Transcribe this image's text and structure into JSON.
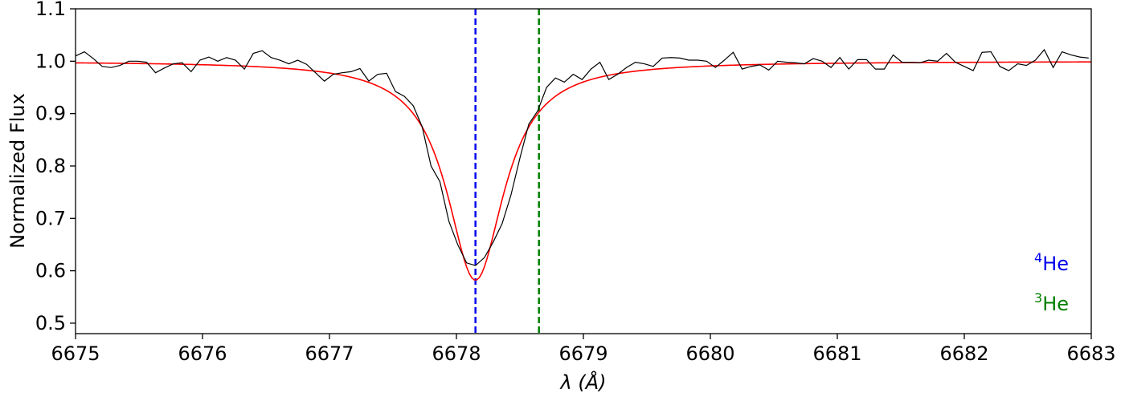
{
  "chart_data": {
    "type": "line",
    "xlabel": "λ (Å)",
    "ylabel": "Normalized Flux",
    "xlim": [
      6675,
      6683
    ],
    "ylim": [
      0.48,
      1.1
    ],
    "x_ticks": [
      6675,
      6676,
      6677,
      6678,
      6679,
      6680,
      6681,
      6682,
      6683
    ],
    "x_tick_labels": [
      "6675",
      "6676",
      "6677",
      "6678",
      "6679",
      "6680",
      "6681",
      "6682",
      "6683"
    ],
    "y_ticks": [
      0.5,
      0.6,
      0.7,
      0.8,
      0.9,
      1.0,
      1.1
    ],
    "y_tick_labels": [
      "0.5",
      "0.6",
      "0.7",
      "0.8",
      "0.9",
      "1.0",
      "1.1"
    ],
    "grid": false,
    "series": [
      {
        "role": "observed",
        "color": "#000000",
        "x": [
          6675.0,
          6675.07,
          6675.14,
          6675.21,
          6675.28,
          6675.35,
          6675.42,
          6675.49,
          6675.56,
          6675.63,
          6675.7,
          6675.77,
          6675.84,
          6675.91,
          6675.98,
          6676.05,
          6676.12,
          6676.19,
          6676.26,
          6676.33,
          6676.4,
          6676.47,
          6676.54,
          6676.61,
          6676.68,
          6676.75,
          6676.82,
          6676.89,
          6676.96,
          6677.03,
          6677.1,
          6677.17,
          6677.24,
          6677.31,
          6677.38,
          6677.45,
          6677.52,
          6677.59,
          6677.66,
          6677.73,
          6677.8,
          6677.87,
          6677.94,
          6678.01,
          6678.08,
          6678.15,
          6678.22,
          6678.29,
          6678.36,
          6678.43,
          6678.5,
          6678.57,
          6678.64,
          6678.71,
          6678.78,
          6678.85,
          6678.92,
          6678.99,
          6679.06,
          6679.13,
          6679.2,
          6679.27,
          6679.34,
          6679.41,
          6679.48,
          6679.55,
          6679.62,
          6679.69,
          6679.76,
          6679.83,
          6679.9,
          6679.97,
          6680.04,
          6680.11,
          6680.18,
          6680.25,
          6680.32,
          6680.39,
          6680.46,
          6680.53,
          6680.6,
          6680.67,
          6680.74,
          6680.81,
          6680.88,
          6680.95,
          6681.02,
          6681.09,
          6681.16,
          6681.23,
          6681.3,
          6681.37,
          6681.44,
          6681.51,
          6681.58,
          6681.65,
          6681.72,
          6681.79,
          6681.86,
          6681.93,
          6682.0,
          6682.07,
          6682.14,
          6682.21,
          6682.28,
          6682.35,
          6682.42,
          6682.49,
          6682.56,
          6682.63,
          6682.7,
          6682.77,
          6682.84,
          6682.91,
          6682.98
        ],
        "y": [
          1.01,
          1.018,
          1.005,
          0.99,
          0.988,
          0.992,
          1.0,
          1.0,
          0.998,
          0.978,
          0.987,
          0.995,
          0.997,
          0.98,
          1.002,
          1.008,
          1.0,
          1.007,
          1.002,
          0.985,
          1.015,
          1.02,
          1.007,
          1.002,
          0.995,
          1.002,
          0.994,
          0.978,
          0.962,
          0.975,
          0.978,
          0.98,
          0.986,
          0.962,
          0.975,
          0.977,
          0.942,
          0.933,
          0.915,
          0.875,
          0.8,
          0.77,
          0.695,
          0.65,
          0.615,
          0.61,
          0.625,
          0.655,
          0.69,
          0.745,
          0.815,
          0.88,
          0.905,
          0.95,
          0.968,
          0.96,
          0.975,
          0.965,
          0.985,
          0.998,
          0.965,
          0.975,
          0.988,
          0.998,
          0.995,
          0.99,
          1.006,
          1.007,
          1.006,
          1.002,
          1.002,
          1.0,
          0.988,
          1.002,
          1.017,
          0.985,
          0.99,
          0.993,
          0.983,
          1.0,
          0.998,
          0.997,
          0.995,
          1.005,
          1.0,
          0.988,
          1.007,
          0.985,
          1.003,
          1.003,
          0.985,
          0.985,
          1.012,
          0.998,
          0.998,
          0.997,
          1.002,
          1.0,
          1.015,
          0.998,
          0.99,
          0.982,
          1.017,
          1.018,
          0.99,
          0.982,
          0.995,
          0.992,
          1.002,
          1.022,
          0.988,
          1.018,
          1.012,
          1.008,
          1.006
        ]
      },
      {
        "role": "model",
        "color": "#ff0000",
        "center": 6678.15,
        "depth": 0.418,
        "width": 0.55
      }
    ],
    "vlines": [
      {
        "x": 6678.15,
        "color": "#0000ee",
        "label": "⁴He"
      },
      {
        "x": 6678.65,
        "color": "#008000",
        "label": "³He"
      }
    ],
    "legend_position": "bottom-right",
    "legend": [
      {
        "sup": "4",
        "text": "He",
        "color": "#0000ee"
      },
      {
        "sup": "3",
        "text": "He",
        "color": "#008000"
      }
    ]
  }
}
